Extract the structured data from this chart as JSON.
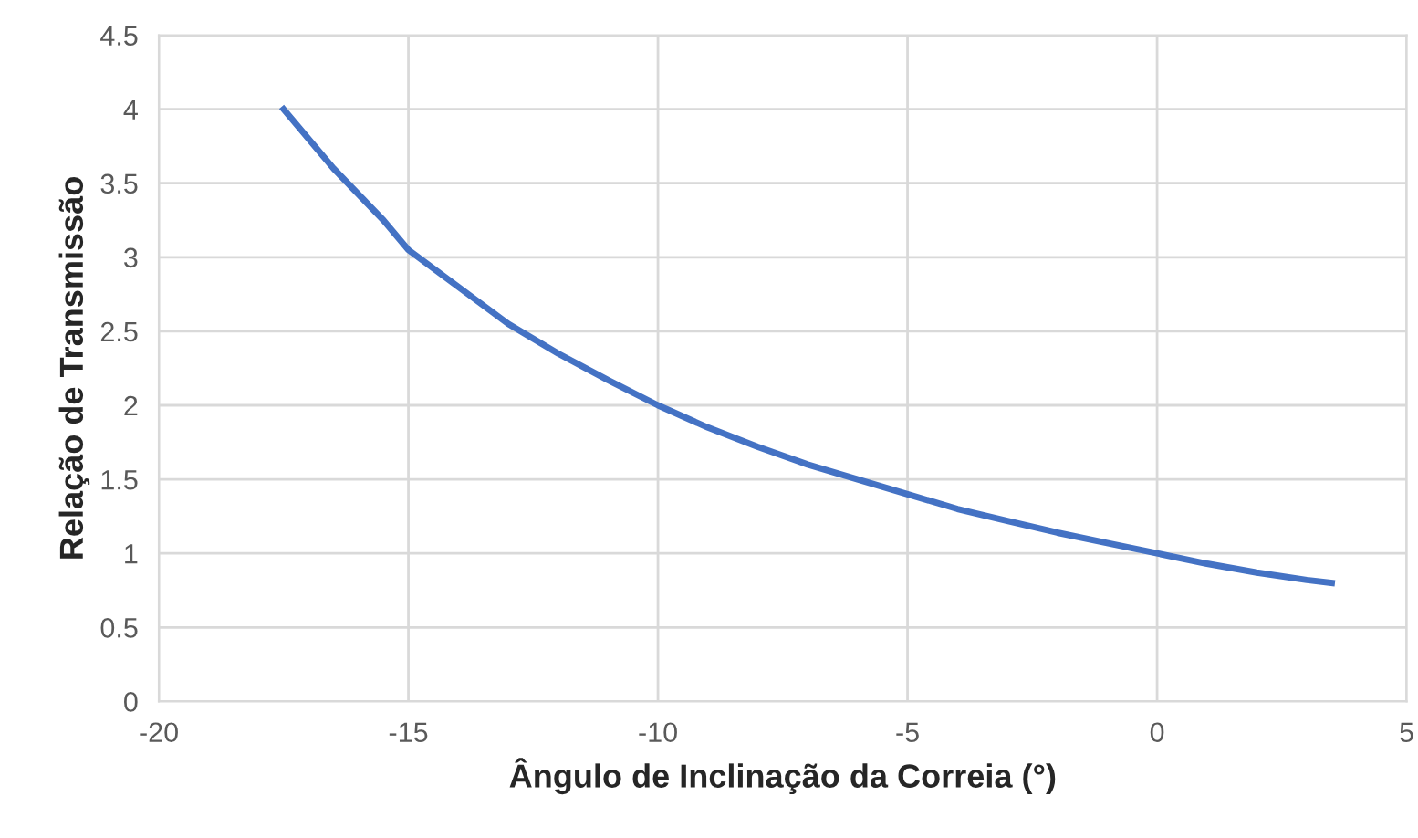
{
  "chart_data": {
    "type": "line",
    "xlabel": "Ângulo de Inclinação da Correia (°)",
    "ylabel": "Relação de Transmissão",
    "series": [
      {
        "color": "#4472c4",
        "x": [
          -17.5,
          -16.5,
          -15.5,
          -15,
          -14,
          -13,
          -12,
          -11,
          -10,
          -9,
          -8,
          -7,
          -6,
          -5,
          -4,
          -3,
          -2,
          -1,
          0,
          1,
          2,
          3,
          3.5
        ],
        "values": [
          4.0,
          3.6,
          3.25,
          3.05,
          2.8,
          2.55,
          2.35,
          2.17,
          2.0,
          1.85,
          1.72,
          1.6,
          1.5,
          1.4,
          1.3,
          1.22,
          1.14,
          1.07,
          1.0,
          0.93,
          0.87,
          0.82,
          0.8
        ]
      }
    ],
    "xlim": [
      -20,
      5
    ],
    "xticks": [
      -20,
      -15,
      -10,
      -5,
      0,
      5
    ],
    "ylim": [
      0,
      4.5
    ],
    "yticks": [
      0,
      0.5,
      1,
      1.5,
      2,
      2.5,
      3,
      3.5,
      4,
      4.5
    ],
    "grid": true,
    "marker": "none",
    "line_style": "solid"
  }
}
